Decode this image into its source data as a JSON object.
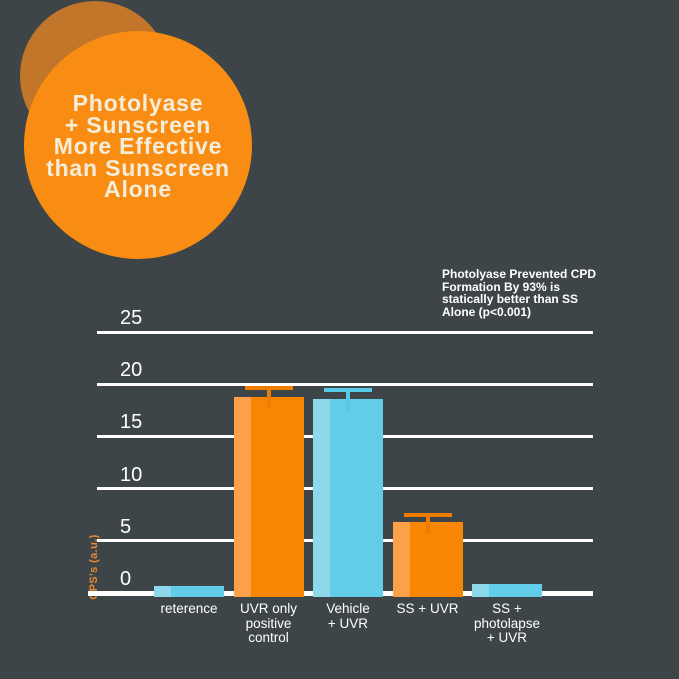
{
  "title_badge": {
    "text": "Photolyase\n+ Sunscreen\nMore Effective\nthan Sunscreen\nAlone"
  },
  "annotation": {
    "text": "Photolyase Prevented CPD\nFormation By 93% is\nstatically better than SS\nAlone (p<0.001)"
  },
  "chart_data": {
    "type": "bar",
    "title": "",
    "xlabel": "",
    "ylabel": "CPS's (a.u.)",
    "ylim": [
      0,
      25
    ],
    "yticks": [
      0,
      5,
      10,
      15,
      20,
      25
    ],
    "grid": true,
    "legend_position": "none",
    "categories": [
      "reterence",
      "UVR only\npositive\ncontrol",
      "Vehicle\n+ UVR",
      "SS + UVR",
      "SS +\nphotolapse\n+ UVR"
    ],
    "values": [
      0.7,
      18.8,
      18.6,
      6.8,
      0.9
    ],
    "errors_upper": [
      0,
      1.0,
      1.0,
      0.9,
      0
    ],
    "bar_colors": [
      "blue",
      "orange",
      "blue",
      "orange",
      "blue"
    ]
  },
  "colors": {
    "background": "#3d4549",
    "badge_orange": "#f98d14",
    "badge_dark_orange": "#c1762a",
    "badge_text": "#f3edda",
    "grid_white": "#ffffff",
    "text_white": "#ffffff",
    "bar_orange_main": "#f98603",
    "bar_orange_light": "#fda04a",
    "bar_blue_main": "#62cde9",
    "bar_blue_light": "#8ed8ec",
    "error_orange": "#ee7c00",
    "error_blue": "#57c8e6",
    "axis_label_orange": "#e8892f"
  }
}
